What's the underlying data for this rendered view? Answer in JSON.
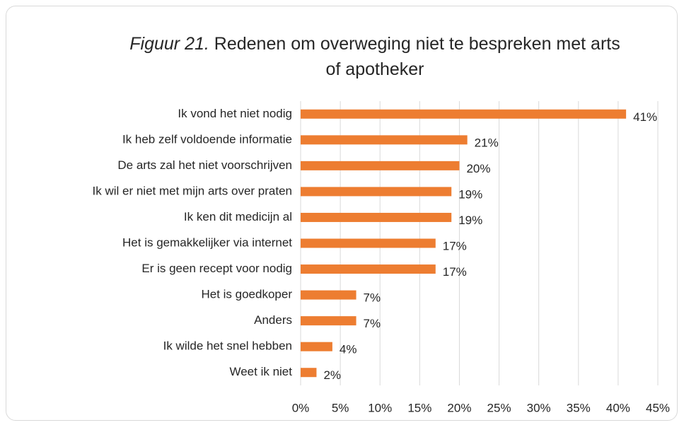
{
  "chart_data": {
    "type": "hbar",
    "title_emphasis": "Figuur 21.",
    "title": "Redenen om overweging niet te bespreken met arts of apotheker",
    "categories": [
      "Ik vond het niet nodig",
      "Ik heb zelf voldoende informatie",
      "De arts zal het niet voorschrijven",
      "Ik wil er niet met mijn arts over praten",
      "Ik ken dit medicijn al",
      "Het is gemakkelijker via internet",
      "Er is geen recept voor nodig",
      "Het is goedkoper",
      "Anders",
      "Ik wilde het snel hebben",
      "Weet ik niet"
    ],
    "values": [
      41,
      21,
      20,
      19,
      19,
      17,
      17,
      7,
      7,
      4,
      2
    ],
    "value_labels": [
      "41%",
      "21%",
      "20%",
      "19%",
      "19%",
      "17%",
      "17%",
      "7%",
      "7%",
      "4%",
      "2%"
    ],
    "color": "#ed7d31",
    "xlim": [
      0,
      45
    ],
    "xticks": [
      {
        "value": 0,
        "label": "0%"
      },
      {
        "value": 5,
        "label": "5%"
      },
      {
        "value": 10,
        "label": "10%"
      },
      {
        "value": 15,
        "label": "15%"
      },
      {
        "value": 20,
        "label": "20%"
      },
      {
        "value": 25,
        "label": "25%"
      },
      {
        "value": 30,
        "label": "30%"
      },
      {
        "value": 35,
        "label": "35%"
      },
      {
        "value": 40,
        "label": "40%"
      },
      {
        "value": 45,
        "label": "45%"
      }
    ],
    "grid": true
  }
}
